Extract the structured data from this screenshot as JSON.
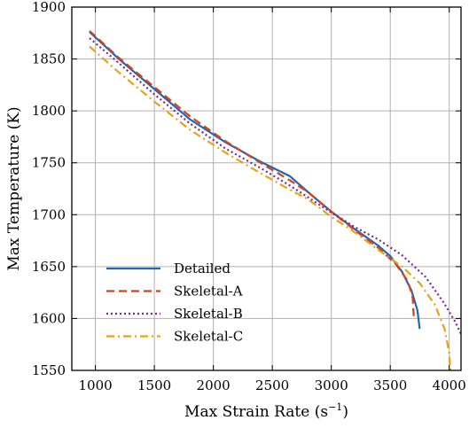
{
  "chart_data": {
    "type": "line",
    "title": "",
    "xlabel": "Max Strain Rate (s",
    "xlabel_sup": "−1",
    "xlabel_close": ")",
    "ylabel": "Max Temperature (K)",
    "xlim": [
      800,
      4100
    ],
    "ylim": [
      1550,
      1900
    ],
    "xticks": [
      1000,
      1500,
      2000,
      2500,
      3000,
      3500,
      4000
    ],
    "xtick_labels": [
      "1000",
      "1500",
      "2000",
      "2500",
      "3000",
      "3500",
      "4000"
    ],
    "yticks": [
      1550,
      1600,
      1650,
      1700,
      1750,
      1800,
      1850,
      1900
    ],
    "ytick_labels": [
      "1550",
      "1600",
      "1650",
      "1700",
      "1750",
      "1800",
      "1850",
      "1900"
    ],
    "grid": true,
    "legend_position": "lower-left",
    "series": [
      {
        "name": "Detailed",
        "color": "#1f67b4",
        "dash": "solid",
        "points": [
          [
            950,
            1876
          ],
          [
            1200,
            1850
          ],
          [
            1500,
            1821
          ],
          [
            1800,
            1792
          ],
          [
            2100,
            1770
          ],
          [
            2400,
            1751
          ],
          [
            2650,
            1737
          ],
          [
            2800,
            1722
          ],
          [
            3000,
            1703
          ],
          [
            3200,
            1686
          ],
          [
            3400,
            1670
          ],
          [
            3500,
            1660
          ],
          [
            3600,
            1645
          ],
          [
            3680,
            1627
          ],
          [
            3730,
            1608
          ],
          [
            3750,
            1590
          ]
        ]
      },
      {
        "name": "Skeletal-A",
        "color": "#d9401a",
        "dash": "dashed",
        "points": [
          [
            950,
            1877
          ],
          [
            1200,
            1851
          ],
          [
            1500,
            1823
          ],
          [
            1800,
            1795
          ],
          [
            2100,
            1771
          ],
          [
            2400,
            1750
          ],
          [
            2650,
            1733
          ],
          [
            2800,
            1722
          ],
          [
            3000,
            1703
          ],
          [
            3200,
            1685
          ],
          [
            3400,
            1668
          ],
          [
            3550,
            1652
          ],
          [
            3650,
            1636
          ],
          [
            3690,
            1620
          ],
          [
            3700,
            1600
          ]
        ]
      },
      {
        "name": "Skeletal-B",
        "color": "#7a2a8c",
        "dash": "dotted",
        "points": [
          [
            950,
            1870
          ],
          [
            1200,
            1846
          ],
          [
            1500,
            1816
          ],
          [
            1800,
            1788
          ],
          [
            2100,
            1764
          ],
          [
            2400,
            1745
          ],
          [
            2650,
            1728
          ],
          [
            2800,
            1717
          ],
          [
            3000,
            1702
          ],
          [
            3200,
            1688
          ],
          [
            3400,
            1676
          ],
          [
            3600,
            1661
          ],
          [
            3800,
            1640
          ],
          [
            3950,
            1616
          ],
          [
            4050,
            1597
          ],
          [
            4100,
            1585
          ]
        ]
      },
      {
        "name": "Skeletal-C",
        "color": "#e6a317",
        "dash": "dashdot",
        "points": [
          [
            950,
            1862
          ],
          [
            1200,
            1837
          ],
          [
            1500,
            1809
          ],
          [
            1800,
            1782
          ],
          [
            2100,
            1760
          ],
          [
            2400,
            1740
          ],
          [
            2650,
            1724
          ],
          [
            2800,
            1715
          ],
          [
            3000,
            1698
          ],
          [
            3200,
            1683
          ],
          [
            3400,
            1666
          ],
          [
            3600,
            1650
          ],
          [
            3750,
            1634
          ],
          [
            3880,
            1613
          ],
          [
            3960,
            1590
          ],
          [
            4000,
            1567
          ],
          [
            4010,
            1550
          ]
        ]
      }
    ]
  }
}
